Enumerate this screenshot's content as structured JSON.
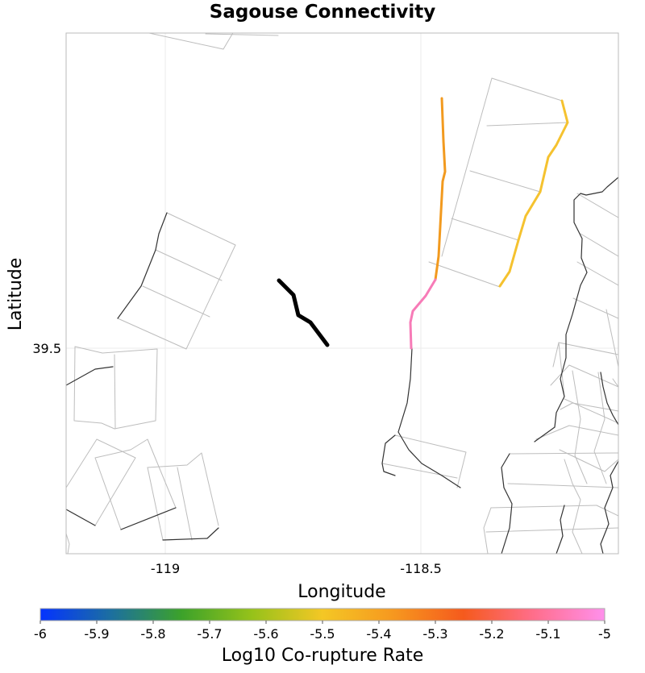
{
  "chart_data": {
    "type": "map",
    "title": "Sagouse Connectivity",
    "xlabel": "Longitude",
    "ylabel": "Latitude",
    "x_ticks": [
      {
        "value": -119,
        "label": "-119"
      },
      {
        "value": -118.5,
        "label": "-118.5"
      }
    ],
    "y_ticks": [
      {
        "value": 39.5,
        "label": "39.5"
      }
    ],
    "colorbar": {
      "label": "Log10 Co-rupture Rate",
      "range": [
        -6,
        -5
      ],
      "ticks": [
        {
          "value": -6,
          "label": "-6"
        },
        {
          "value": -5.9,
          "label": "-5.9"
        },
        {
          "value": -5.8,
          "label": "-5.8"
        },
        {
          "value": -5.7,
          "label": "-5.7"
        },
        {
          "value": -5.6,
          "label": "-5.6"
        },
        {
          "value": -5.5,
          "label": "-5.5"
        },
        {
          "value": -5.4,
          "label": "-5.4"
        },
        {
          "value": -5.3,
          "label": "-5.3"
        },
        {
          "value": -5.2,
          "label": "-5.2"
        },
        {
          "value": -5.1,
          "label": "-5.1"
        },
        {
          "value": -5,
          "label": "-5"
        }
      ],
      "colors": [
        "#0433ff",
        "#1c6fa0",
        "#3ca22a",
        "#96c21a",
        "#f4c725",
        "#f6981f",
        "#f55a1d",
        "#ff6e8c",
        "#ff90ec"
      ]
    },
    "source_fault": {
      "name": "Sagouse",
      "color": "#000000"
    },
    "connected_faults": [
      {
        "name": "connected-fault-pink",
        "log10_rate": -5.05,
        "color": "#f77bb7"
      },
      {
        "name": "connected-fault-orange",
        "log10_rate": -5.38,
        "color": "#f29a1f"
      },
      {
        "name": "connected-fault-yellow",
        "log10_rate": -5.47,
        "color": "#f5c22f"
      }
    ]
  }
}
